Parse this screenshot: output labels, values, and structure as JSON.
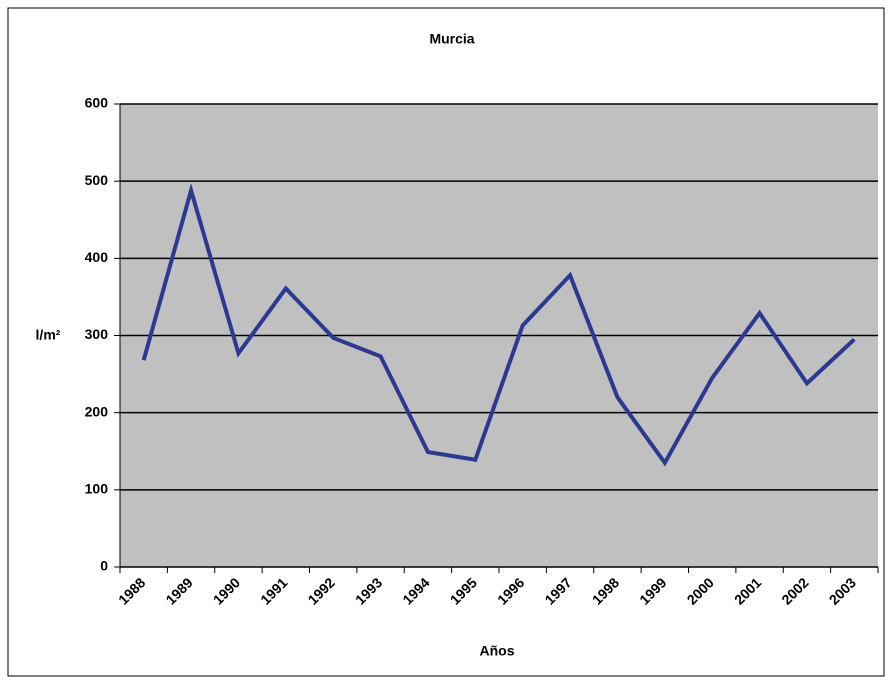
{
  "chart_data": {
    "type": "line",
    "title": "Murcia",
    "x_label": "Años",
    "y_label": "l/m²",
    "categories": [
      "1988",
      "1989",
      "1990",
      "1991",
      "1992",
      "1993",
      "1994",
      "1995",
      "1996",
      "1997",
      "1998",
      "1999",
      "2000",
      "2001",
      "2002",
      "2003"
    ],
    "series": [
      {
        "name": "Murcia",
        "color": "#2b3990",
        "values": [
          268,
          488,
          277,
          361,
          297,
          273,
          149,
          139,
          313,
          378,
          220,
          135,
          245,
          329,
          238,
          295
        ]
      }
    ],
    "ylim": [
      0,
      600
    ],
    "yticks": [
      0,
      100,
      200,
      300,
      400,
      500,
      600
    ],
    "grid": true,
    "plot_background": "#c0c0c0"
  }
}
